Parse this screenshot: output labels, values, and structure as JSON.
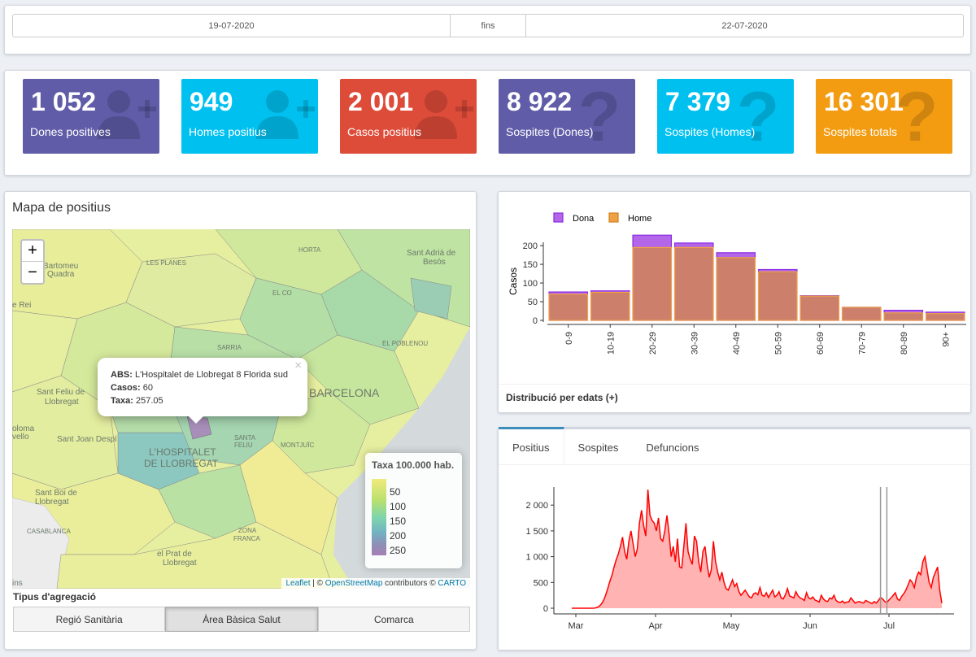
{
  "date_range": {
    "start": "19-07-2020",
    "separator": "fins",
    "end": "22-07-2020"
  },
  "value_boxes": [
    {
      "value": "1 052",
      "label": "Dones positives",
      "color": "#605ca8",
      "icon": "user-plus-icon"
    },
    {
      "value": "949",
      "label": "Homes positius",
      "color": "#00c0ef",
      "icon": "user-plus-icon"
    },
    {
      "value": "2 001",
      "label": "Casos positius",
      "color": "#dd4b39",
      "icon": "user-plus-icon"
    },
    {
      "value": "8 922",
      "label": "Sospites (Dones)",
      "color": "#605ca8",
      "icon": "question-icon"
    },
    {
      "value": "7 379",
      "label": "Sospites (Homes)",
      "color": "#00c0ef",
      "icon": "question-icon"
    },
    {
      "value": "16 301",
      "label": "Sospites totals",
      "color": "#f39c12",
      "icon": "question-icon"
    }
  ],
  "map_panel": {
    "title": "Mapa de positius",
    "zoom_in": "+",
    "zoom_out": "−",
    "popup": {
      "abs_label": "ABS:",
      "abs_value": "L'Hospitalet de Llobregat 8 Florida sud",
      "casos_label": "Casos:",
      "casos_value": "60",
      "taxa_label": "Taxa:",
      "taxa_value": "257.05",
      "close": "×"
    },
    "place_labels": [
      "Bartomeu",
      "i Quadra",
      "LES PLANES",
      "HORTA",
      "Sant Adrià de",
      "Besòs",
      "e Rei",
      "EL CO",
      "SARRIA",
      "EL POBLENOU",
      "BARCELONA",
      "Sant Feliu de",
      "Llobregat",
      "oloma",
      "vello",
      "Sant Joan Despí",
      "L'HOSPITALET",
      "DE LLOBREGAT",
      "SANTA",
      "FELIU",
      "MONTJUÏC",
      "Sant Boi de",
      "Llobregat",
      "CASABLANCA",
      "ZONA",
      "FRANCA",
      "el Prat de",
      "Llobregat",
      "ins"
    ],
    "legend": {
      "title": "Taxa 100.000 hab.",
      "ticks": [
        "50",
        "100",
        "150",
        "200",
        "250"
      ]
    },
    "attribution": {
      "leaflet": "Leaflet",
      "sep1": " | © ",
      "osm": "OpenStreetMap",
      "mid": " contributors © ",
      "carto": "CARTO"
    },
    "aggregation_label": "Tipus d'agregació",
    "aggregation_options": [
      "Regió Sanitària",
      "Àrea Bàsica Salut",
      "Comarca"
    ],
    "aggregation_selected": "Àrea Bàsica Salut"
  },
  "age_chart": {
    "footer": "Distribució per edats (+)",
    "chart_data": {
      "type": "bar",
      "categories": [
        "0-9",
        "10-19",
        "20-29",
        "30-39",
        "40-49",
        "50-59",
        "60-69",
        "70-79",
        "80-89",
        "90+"
      ],
      "series": [
        {
          "name": "Home",
          "color": "#f0a045",
          "values": [
            70,
            75,
            195,
            195,
            168,
            130,
            65,
            35,
            20,
            18
          ]
        },
        {
          "name": "Dona",
          "color": "#b466e8",
          "values": [
            76,
            79,
            228,
            207,
            181,
            136,
            66,
            35,
            27,
            22
          ]
        }
      ],
      "ylabel": "Casos",
      "yticks": [
        0,
        50,
        100,
        150,
        200
      ],
      "ylim": [
        0,
        235
      ],
      "legend_position": "top-left"
    }
  },
  "time_series": {
    "tabs": [
      "Positius",
      "Sospites",
      "Defuncions"
    ],
    "active_tab": "Positius",
    "chart_data": {
      "type": "area",
      "xlabels": [
        "Mar",
        "Apr",
        "May",
        "Jun",
        "Jul"
      ],
      "yticks": [
        "0",
        "500",
        "1 000",
        "1 500",
        "2 000"
      ],
      "ylim": [
        0,
        2350
      ],
      "color": "#ff0000",
      "fill": "#ffb3b3",
      "values": [
        0,
        0,
        0,
        0,
        0,
        0,
        0,
        0,
        0,
        0,
        0,
        5,
        15,
        40,
        80,
        150,
        250,
        380,
        520,
        640,
        800,
        940,
        1050,
        1200,
        1380,
        1100,
        950,
        1300,
        1500,
        1250,
        1000,
        1150,
        1650,
        1900,
        1600,
        1400,
        2300,
        1800,
        1700,
        1650,
        1500,
        1750,
        1350,
        1300,
        1500,
        1800,
        1450,
        1000,
        1200,
        900,
        1350,
        800,
        780,
        1200,
        1650,
        1100,
        950,
        850,
        1400,
        1300,
        900,
        700,
        1100,
        1200,
        850,
        600,
        750,
        1300,
        900,
        700,
        550,
        700,
        500,
        380,
        350,
        450,
        550,
        420,
        480,
        330,
        250,
        300,
        350,
        280,
        220,
        200,
        280,
        300,
        260,
        400,
        250,
        230,
        300,
        210,
        280,
        350,
        220,
        250,
        320,
        200,
        180,
        260,
        380,
        240,
        220,
        200,
        320,
        240,
        200,
        180,
        150,
        300,
        200,
        180,
        220,
        160,
        140,
        120,
        250,
        180,
        140,
        130,
        200,
        180,
        250,
        150,
        120,
        110,
        140,
        100,
        120,
        120,
        200,
        150,
        100,
        120,
        130,
        110,
        100,
        150,
        130,
        110,
        90,
        130,
        100,
        150,
        210,
        180,
        130,
        110,
        160,
        200,
        250,
        300,
        180,
        150,
        230,
        280,
        350,
        450,
        550,
        500,
        400,
        600,
        700,
        650,
        900,
        1000,
        750,
        500,
        400,
        600,
        700,
        800,
        350,
        100
      ],
      "vlines_index": [
        146,
        149
      ]
    }
  }
}
